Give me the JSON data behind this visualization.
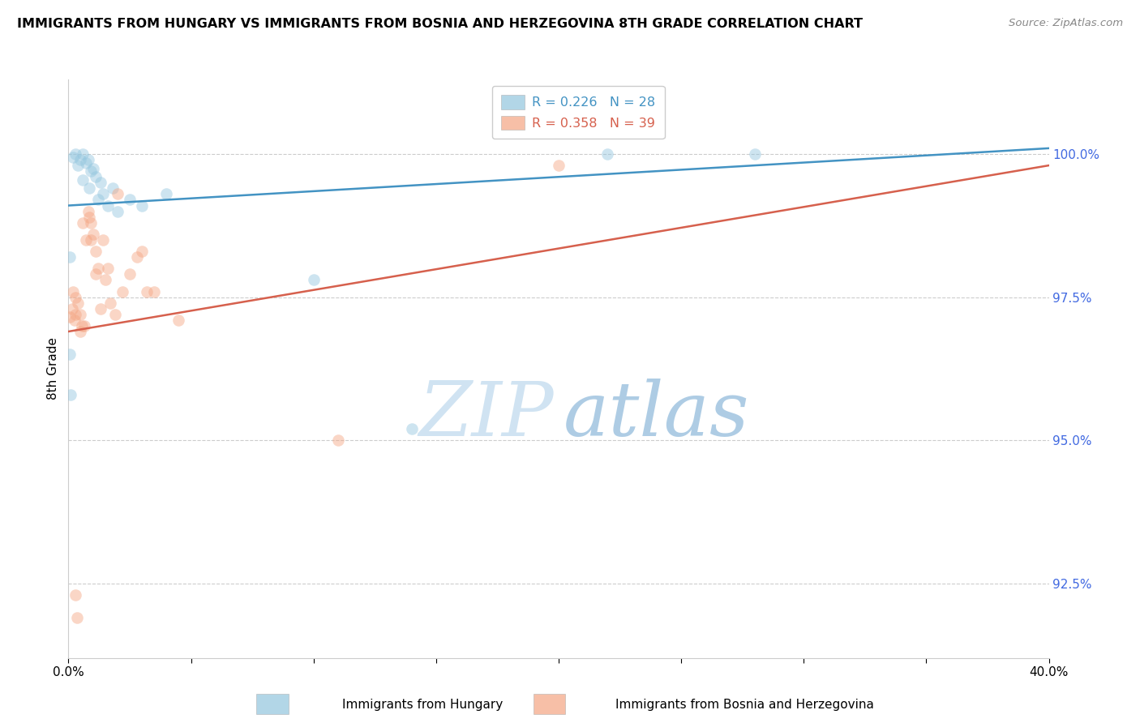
{
  "title": "IMMIGRANTS FROM HUNGARY VS IMMIGRANTS FROM BOSNIA AND HERZEGOVINA 8TH GRADE CORRELATION CHART",
  "source": "Source: ZipAtlas.com",
  "ylabel": "8th Grade",
  "right_yticks": [
    92.5,
    95.0,
    97.5,
    100.0
  ],
  "right_yticklabels": [
    "92.5%",
    "95.0%",
    "97.5%",
    "100.0%"
  ],
  "xmin": 0.0,
  "xmax": 40.0,
  "ymin": 91.2,
  "ymax": 101.3,
  "legend_R1": "R = 0.226",
  "legend_N1": "N = 28",
  "legend_R2": "R = 0.358",
  "legend_N2": "N = 39",
  "series1_label": "Immigrants from Hungary",
  "series2_label": "Immigrants from Bosnia and Herzegovina",
  "watermark_zip": "ZIP",
  "watermark_atlas": "atlas",
  "blue_color": "#92c5de",
  "pink_color": "#f4a582",
  "blue_line_color": "#4393c3",
  "pink_line_color": "#d6604d",
  "right_axis_color": "#4169E1",
  "scatter_alpha": 0.45,
  "scatter_size": 110,
  "blue_scatter_x": [
    0.3,
    0.5,
    0.6,
    0.7,
    0.8,
    0.9,
    1.0,
    1.1,
    1.3,
    1.4,
    1.6,
    1.8,
    2.0,
    2.5,
    3.0,
    4.0,
    0.2,
    0.4,
    0.6,
    0.85,
    1.2,
    22.0,
    28.0,
    0.05,
    0.1,
    14.0,
    0.05,
    10.0
  ],
  "blue_scatter_y": [
    100.0,
    99.9,
    100.0,
    99.85,
    99.9,
    99.7,
    99.75,
    99.6,
    99.5,
    99.3,
    99.1,
    99.4,
    99.0,
    99.2,
    99.1,
    99.3,
    99.95,
    99.8,
    99.55,
    99.4,
    99.2,
    100.0,
    100.0,
    96.5,
    95.8,
    95.2,
    98.2,
    97.8
  ],
  "pink_scatter_x": [
    0.15,
    0.25,
    0.3,
    0.4,
    0.5,
    0.55,
    0.6,
    0.7,
    0.8,
    0.9,
    1.0,
    1.1,
    1.2,
    1.4,
    1.5,
    1.7,
    2.0,
    2.2,
    2.5,
    3.0,
    3.5,
    4.5,
    20.0,
    0.2,
    0.3,
    0.05,
    1.3,
    1.6,
    2.8,
    3.2,
    0.5,
    0.65,
    0.85,
    1.1,
    11.0,
    0.3,
    0.35,
    0.9,
    1.9
  ],
  "pink_scatter_y": [
    97.3,
    97.1,
    97.5,
    97.4,
    97.2,
    97.0,
    98.8,
    98.5,
    99.0,
    98.8,
    98.6,
    98.3,
    98.0,
    98.5,
    97.8,
    97.4,
    99.3,
    97.6,
    97.9,
    98.3,
    97.6,
    97.1,
    99.8,
    97.6,
    97.2,
    97.15,
    97.3,
    98.0,
    98.2,
    97.6,
    96.9,
    97.0,
    98.9,
    97.9,
    95.0,
    92.3,
    91.9,
    98.5,
    97.2
  ],
  "blue_trendline_x": [
    0.0,
    40.0
  ],
  "blue_trendline_y": [
    99.1,
    100.1
  ],
  "pink_trendline_x": [
    0.0,
    40.0
  ],
  "pink_trendline_y": [
    96.9,
    99.8
  ]
}
